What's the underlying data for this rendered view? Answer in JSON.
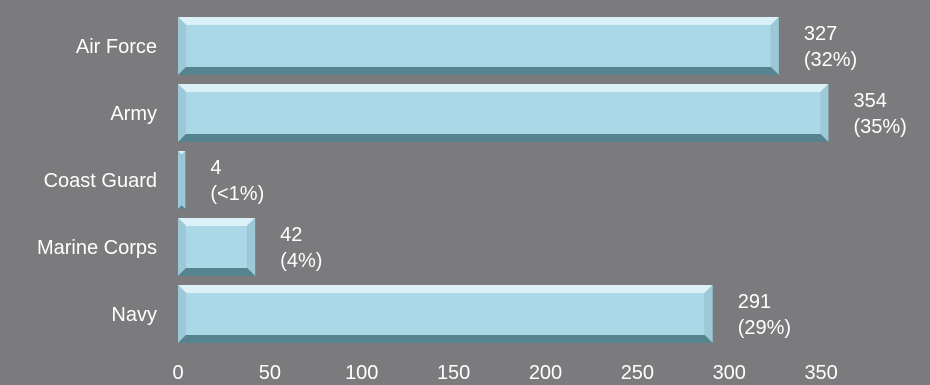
{
  "chart_data": {
    "type": "bar",
    "orientation": "horizontal",
    "categories": [
      "Air Force",
      "Army",
      "Coast Guard",
      "Marine Corps",
      "Navy"
    ],
    "values": [
      327,
      354,
      4,
      42,
      291
    ],
    "value_labels": [
      "327",
      "354",
      "4",
      "42",
      "291"
    ],
    "percent_labels": [
      "(32%)",
      "(35%)",
      "(<1%)",
      "(4%)",
      "(29%)"
    ],
    "x_ticks": [
      "0",
      "50",
      "100",
      "150",
      "200",
      "250",
      "300",
      "350"
    ],
    "xlim": [
      0,
      350
    ],
    "grid": false,
    "legend": "none",
    "colors": {
      "background": "#7b7b7d",
      "bar_face": "#aad8e6",
      "bar_light": "#dcf0f7",
      "bar_mid": "#9cc8d8",
      "bar_dark": "#55848f",
      "text": "#ffffff"
    }
  }
}
